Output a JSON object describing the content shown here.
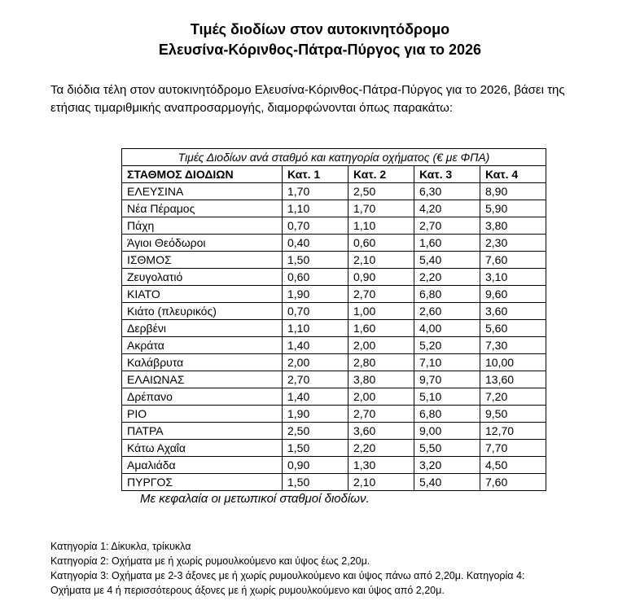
{
  "title_line1": "Τιμές διοδίων στον αυτοκινητόδρομο",
  "title_line2": "Ελευσίνα-Κόρινθος-Πάτρα-Πύργος για το 2026",
  "intro_line1": "Τα διόδια τέλη στον αυτοκινητόδρομο Ελευσίνα-Κόρινθος-Πάτρα-Πύργος για το 2026, βάσει της",
  "intro_line2": "ετήσιας τιμαριθμικής αναπροσαρμογής, διαμορφώνονται όπως παρακάτω:",
  "table": {
    "caption": "Τιμές Διοδίων ανά σταθμό και κατηγορία οχήματος (€ με ΦΠΑ)",
    "headers": [
      "ΣΤΑΘΜΟΣ ΔΙΟΔΙΩΝ",
      "Κατ. 1",
      "Κατ. 2",
      "Κατ. 3",
      "Κατ. 4"
    ],
    "rows": [
      [
        "ΕΛΕΥΣΙΝΑ",
        "1,70",
        "2,50",
        "6,30",
        "8,90"
      ],
      [
        "Νέα Πέραμος",
        "1,10",
        "1,70",
        "4,20",
        "5,90"
      ],
      [
        "Πάχη",
        "0,70",
        "1,10",
        "2,70",
        "3,80"
      ],
      [
        "Άγιοι Θεόδωροι",
        "0,40",
        "0,60",
        "1,60",
        "2,30"
      ],
      [
        "ΙΣΘΜΟΣ",
        "1,50",
        "2,10",
        "5,40",
        "7,60"
      ],
      [
        "Ζευγολατιό",
        "0,60",
        "0,90",
        "2,20",
        "3,10"
      ],
      [
        "ΚΙΑΤΟ",
        "1,90",
        "2,70",
        "6,80",
        "9,60"
      ],
      [
        "Κιάτο (πλευρικός)",
        "0,70",
        "1,00",
        "2,60",
        "3,60"
      ],
      [
        "Δερβένι",
        "1,10",
        "1,60",
        "4,00",
        "5,60"
      ],
      [
        "Ακράτα",
        "1,40",
        "2,00",
        "5,20",
        "7,30"
      ],
      [
        "Καλάβρυτα",
        "2,00",
        "2,80",
        "7,10",
        "10,00"
      ],
      [
        "ΕΛΑΙΩΝΑΣ",
        "2,70",
        "3,80",
        "9,70",
        "13,60"
      ],
      [
        "Δρέπανο",
        "1,40",
        "2,00",
        "5,10",
        "7,20"
      ],
      [
        "ΡΙΟ",
        "1,90",
        "2,70",
        "6,80",
        "9,50"
      ],
      [
        "ΠΑΤΡΑ",
        "2,50",
        "3,60",
        "9,00",
        "12,70"
      ],
      [
        "Κάτω Αχαΐα",
        "1,50",
        "2,20",
        "5,50",
        "7,70"
      ],
      [
        "Αμαλιάδα",
        "0,90",
        "1,30",
        "3,20",
        "4,50"
      ],
      [
        "ΠΥΡΓΟΣ",
        "1,50",
        "2,10",
        "5,40",
        "7,60"
      ]
    ]
  },
  "note": "Με κεφαλαία οι μετωπικοί σταθμοί διοδίων.",
  "footnotes": [
    "Κατηγορία 1: Δίκυκλα, τρίκυκλα",
    "Κατηγορία 2: Οχήματα με ή χωρίς ρυμουλκούμενο και ύψος έως 2,20μ.",
    "Κατηγορία 3: Οχήματα με 2-3 άξονες με ή χωρίς ρυμουλκούμενο και ύψος πάνω από 2,20μ. Κατηγορία 4:",
    "Οχήματα με 4 ή περισσότερους άξονες με ή χωρίς ρυμουλκούμενο και ύψος από 2,20μ."
  ]
}
